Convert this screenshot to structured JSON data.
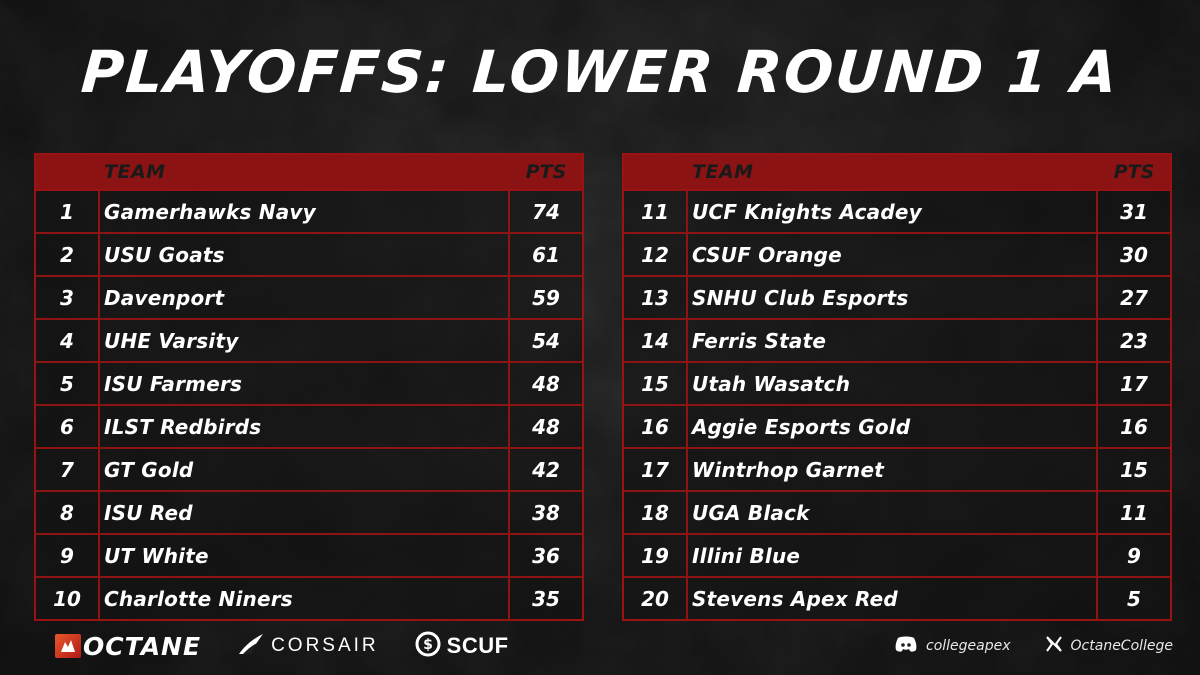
{
  "title": "PLAYOFFS: LOWER ROUND 1 A",
  "table_headers": {
    "team": "TEAM",
    "pts": "PTS"
  },
  "standings_left": [
    {
      "rank": "1",
      "team": "Gamerhawks Navy",
      "pts": "74"
    },
    {
      "rank": "2",
      "team": "USU Goats",
      "pts": "61"
    },
    {
      "rank": "3",
      "team": "Davenport",
      "pts": "59"
    },
    {
      "rank": "4",
      "team": "UHE Varsity",
      "pts": "54"
    },
    {
      "rank": "5",
      "team": "ISU Farmers",
      "pts": "48"
    },
    {
      "rank": "6",
      "team": "ILST Redbirds",
      "pts": "48"
    },
    {
      "rank": "7",
      "team": "GT Gold",
      "pts": "42"
    },
    {
      "rank": "8",
      "team": "ISU Red",
      "pts": "38"
    },
    {
      "rank": "9",
      "team": "UT White",
      "pts": "36"
    },
    {
      "rank": "10",
      "team": "Charlotte Niners",
      "pts": "35"
    }
  ],
  "standings_right": [
    {
      "rank": "11",
      "team": "UCF Knights Acadey",
      "pts": "31"
    },
    {
      "rank": "12",
      "team": "CSUF Orange",
      "pts": "30"
    },
    {
      "rank": "13",
      "team": "SNHU Club Esports",
      "pts": "27"
    },
    {
      "rank": "14",
      "team": "Ferris State",
      "pts": "23"
    },
    {
      "rank": "15",
      "team": "Utah Wasatch",
      "pts": "17"
    },
    {
      "rank": "16",
      "team": "Aggie Esports Gold",
      "pts": "16"
    },
    {
      "rank": "17",
      "team": "Wintrhop Garnet",
      "pts": "15"
    },
    {
      "rank": "18",
      "team": "UGA Black",
      "pts": "11"
    },
    {
      "rank": "19",
      "team": "Illini Blue",
      "pts": "9"
    },
    {
      "rank": "20",
      "team": "Stevens Apex Red",
      "pts": "5"
    }
  ],
  "sponsors": {
    "octane": "OCTANE",
    "corsair": "CORSAIR",
    "scuf": "SCUF"
  },
  "socials": {
    "discord": "collegeapex",
    "x": "OctaneCollege"
  },
  "colors": {
    "accent": "#8c1313",
    "background": "#1f1f1f"
  }
}
